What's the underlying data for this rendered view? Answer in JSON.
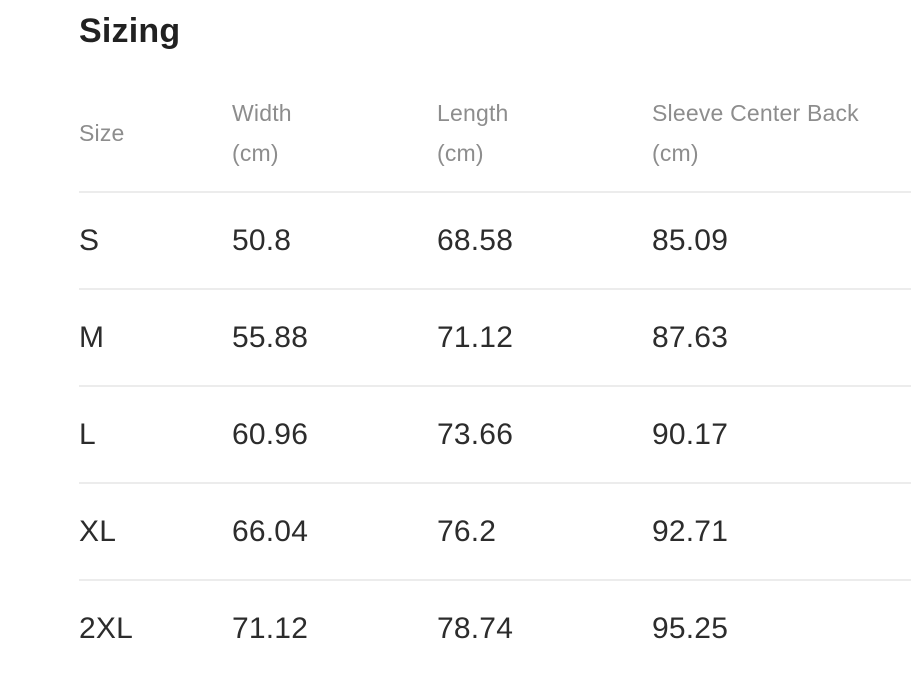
{
  "page": {
    "title": "Sizing"
  },
  "table": {
    "columns": [
      {
        "label": "Size",
        "unit": ""
      },
      {
        "label": "Width",
        "unit": "(cm)"
      },
      {
        "label": "Length",
        "unit": "(cm)"
      },
      {
        "label": "Sleeve Center Back",
        "unit": "(cm)"
      }
    ],
    "rows": [
      {
        "size": "S",
        "width_cm": "50.8",
        "length_cm": "68.58",
        "sleeve_center_back_cm": "85.09"
      },
      {
        "size": "M",
        "width_cm": "55.88",
        "length_cm": "71.12",
        "sleeve_center_back_cm": "87.63"
      },
      {
        "size": "L",
        "width_cm": "60.96",
        "length_cm": "73.66",
        "sleeve_center_back_cm": "90.17"
      },
      {
        "size": "XL",
        "width_cm": "66.04",
        "length_cm": "76.2",
        "sleeve_center_back_cm": "92.71"
      },
      {
        "size": "2XL",
        "width_cm": "71.12",
        "length_cm": "78.74",
        "sleeve_center_back_cm": "95.25"
      }
    ]
  },
  "colors": {
    "background": "#ffffff",
    "heading_text": "#212121",
    "header_text": "#8d8d8d",
    "body_text": "#2c2c2c",
    "divider": "#ececec"
  }
}
